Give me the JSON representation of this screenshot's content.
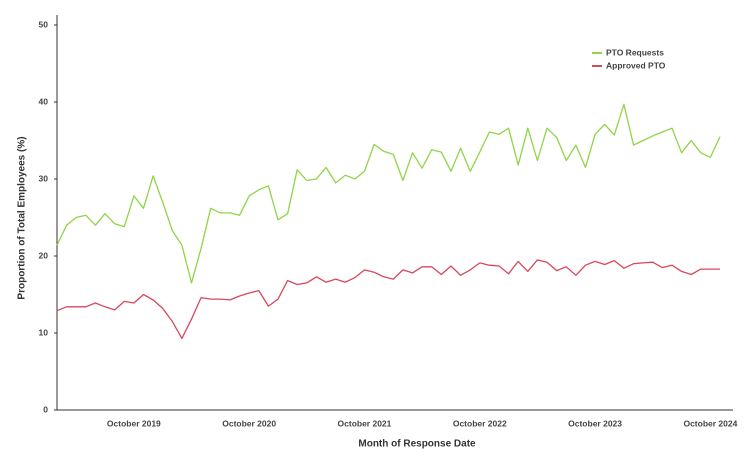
{
  "chart_data": {
    "type": "line",
    "xlabel": "Month of Response Date",
    "ylabel": "Proportion of Total Employees (%)",
    "categories": [
      null,
      null,
      null,
      null,
      null,
      null,
      null,
      null,
      "October 2019",
      null,
      null,
      null,
      null,
      null,
      null,
      null,
      null,
      null,
      null,
      null,
      "October 2020",
      null,
      null,
      null,
      null,
      null,
      null,
      null,
      null,
      null,
      null,
      null,
      "October 2021",
      null,
      null,
      null,
      null,
      null,
      null,
      null,
      null,
      null,
      null,
      null,
      "October 2022",
      null,
      null,
      null,
      null,
      null,
      null,
      null,
      null,
      null,
      null,
      null,
      "October 2023",
      null,
      null,
      null,
      null,
      null,
      null,
      null,
      null,
      null,
      null,
      null,
      "October 2024",
      null
    ],
    "series": [
      {
        "name": "PTO Requests",
        "color": "#8fd548",
        "values": [
          21.4,
          24,
          25,
          25.3,
          24,
          25.5,
          24.2,
          23.8,
          27.8,
          26.2,
          30.4,
          27,
          23.3,
          21.4,
          16.5,
          21,
          26.2,
          25.6,
          25.6,
          25.3,
          27.8,
          28.6,
          29.1,
          24.7,
          25.5,
          31.2,
          29.8,
          30,
          31.5,
          29.5,
          30.5,
          30,
          31,
          34.5,
          33.6,
          33.2,
          29.8,
          33.4,
          31.4,
          33.8,
          33.5,
          31,
          34,
          31,
          33.5,
          36.1,
          35.8,
          36.6,
          31.8,
          36.6,
          32.4,
          36.6,
          35.4,
          32.4,
          34.4,
          31.5,
          35.8,
          37.1,
          35.7,
          39.7,
          34.4,
          35,
          35.6,
          36.1,
          36.6,
          33.4,
          35,
          33.4,
          32.8,
          35.5
        ]
      },
      {
        "name": "Approved PTO",
        "color": "#d9475b",
        "values": [
          12.9,
          13.4,
          13.4,
          13.4,
          13.9,
          13.4,
          13,
          14.1,
          13.9,
          15,
          14.3,
          13.2,
          11.5,
          9.3,
          11.8,
          14.6,
          14.4,
          14.4,
          14.3,
          14.8,
          15.2,
          15.5,
          13.5,
          14.4,
          16.8,
          16.3,
          16.5,
          17.3,
          16.6,
          17,
          16.6,
          17.2,
          18.2,
          17.9,
          17.3,
          17,
          18.2,
          17.8,
          18.6,
          18.6,
          17.6,
          18.7,
          17.5,
          18.2,
          19.1,
          18.8,
          18.7,
          17.7,
          19.3,
          18,
          19.5,
          19.2,
          18.1,
          18.6,
          17.5,
          18.8,
          19.3,
          18.9,
          19.4,
          18.4,
          19,
          19.1,
          19.2,
          18.5,
          18.8,
          18,
          17.6,
          18.3,
          18.3,
          18.3
        ]
      }
    ],
    "ylim": [
      0,
      50
    ],
    "yticks": [
      0,
      10,
      20,
      30,
      40,
      50
    ],
    "grid": false,
    "legend": "upper right"
  }
}
